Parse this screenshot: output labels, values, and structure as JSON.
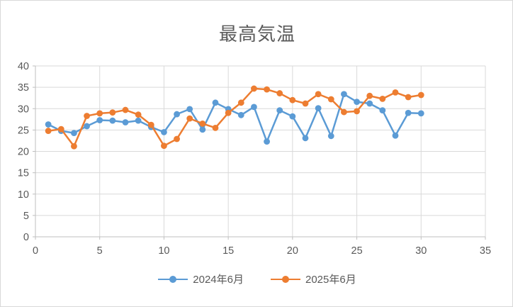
{
  "chart_data": {
    "type": "line",
    "title": "最高気温",
    "x_label": "",
    "y_label": "",
    "x": [
      1,
      2,
      3,
      4,
      5,
      6,
      7,
      8,
      9,
      10,
      11,
      12,
      13,
      14,
      15,
      16,
      17,
      18,
      19,
      20,
      21,
      22,
      23,
      24,
      25,
      26,
      27,
      28,
      29,
      30
    ],
    "series": [
      {
        "name": "2024年6月",
        "color": "#5B9BD5",
        "values": [
          26.3,
          24.8,
          24.3,
          25.9,
          27.3,
          27.2,
          26.8,
          27.2,
          25.7,
          24.5,
          28.7,
          29.9,
          25.1,
          31.4,
          29.9,
          28.5,
          30.4,
          22.3,
          29.6,
          28.2,
          23.1,
          30.1,
          23.6,
          33.4,
          31.6,
          31.2,
          29.6,
          23.7,
          29.0,
          28.9
        ]
      },
      {
        "name": "2025年6月",
        "color": "#ED7D31",
        "values": [
          24.8,
          25.2,
          21.2,
          28.3,
          28.9,
          29.1,
          29.7,
          28.6,
          26.2,
          21.3,
          22.9,
          27.7,
          26.5,
          25.5,
          29.0,
          31.4,
          34.7,
          34.5,
          33.6,
          32.0,
          31.2,
          33.4,
          32.2,
          29.2,
          29.4,
          33.0,
          32.3,
          33.8,
          32.7,
          33.2
        ]
      }
    ],
    "xlim": [
      0,
      35
    ],
    "ylim": [
      0,
      40
    ],
    "x_ticks": [
      0,
      5,
      10,
      15,
      20,
      25,
      30,
      35
    ],
    "y_ticks": [
      0,
      5,
      10,
      15,
      20,
      25,
      30,
      35,
      40
    ],
    "grid": true,
    "legend_position": "bottom",
    "colors": {
      "title": "#595959",
      "tick_label": "#595959",
      "axis_line": "#BFBFBF",
      "gridline": "#D9D9D9",
      "background": "#FFFFFF"
    }
  }
}
